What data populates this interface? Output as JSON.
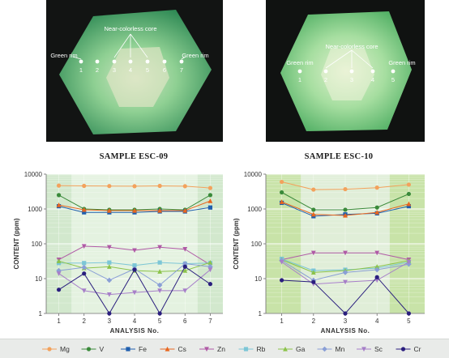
{
  "photos": [
    {
      "labels": {
        "core": "Near-colorless core",
        "rim_left": "Green rim",
        "rim_right": "Green rim"
      },
      "points": [
        "1",
        "2",
        "3",
        "4",
        "5",
        "6",
        "7"
      ]
    },
    {
      "labels": {
        "core": "Near-colorless core",
        "rim_left": "Green rim",
        "rim_right": "Green rim"
      },
      "points": [
        "1",
        "2",
        "3",
        "4",
        "5"
      ]
    }
  ],
  "titles": [
    "SAMPLE ESC-09",
    "SAMPLE ESC-10"
  ],
  "y_axis_label": "CONTENT (ppm)",
  "x_axis_label": "ANALYSIS No.",
  "colors": {
    "Mg": "#f3a25c",
    "V": "#3a8a3a",
    "Fe": "#1f5fae",
    "Cs": "#e8661e",
    "Zn": "#b05aa6",
    "Rb": "#7cc6d6",
    "Ga": "#8cc34a",
    "Mn": "#8a9fd6",
    "Sc": "#a77fc9",
    "Cr": "#2a1e7e",
    "rim_band": "#d2e8cd",
    "core_band": "#e4f2e0",
    "rim_band2": "#c8e3a8",
    "core_band2": "#e0eed8"
  },
  "chart_data": [
    {
      "type": "line",
      "title": "SAMPLE ESC-09",
      "xlabel": "ANALYSIS No.",
      "ylabel": "CONTENT (ppm)",
      "yscale": "log",
      "ylim": [
        1,
        10000
      ],
      "x": [
        1,
        2,
        3,
        4,
        5,
        6,
        7
      ],
      "y_ticks": [
        "1",
        "10",
        "100",
        "1000",
        "10000"
      ],
      "series": [
        {
          "name": "Mg",
          "values": [
            4700,
            4600,
            4550,
            4500,
            4600,
            4500,
            4000
          ]
        },
        {
          "name": "V",
          "values": [
            2500,
            1000,
            950,
            950,
            1000,
            950,
            2500
          ]
        },
        {
          "name": "Fe",
          "values": [
            1200,
            800,
            800,
            800,
            850,
            850,
            1100
          ]
        },
        {
          "name": "Cs",
          "values": [
            1300,
            950,
            900,
            900,
            900,
            900,
            1700
          ]
        },
        {
          "name": "Zn",
          "values": [
            35,
            85,
            80,
            65,
            80,
            70,
            25
          ]
        },
        {
          "name": "Rb",
          "values": [
            28,
            28,
            29,
            24,
            29,
            27,
            28
          ]
        },
        {
          "name": "Ga",
          "values": [
            32,
            20,
            22,
            17,
            16,
            17,
            29
          ]
        },
        {
          "name": "Mn",
          "values": [
            17,
            21,
            9,
            19,
            6.5,
            27,
            22
          ]
        },
        {
          "name": "Sc",
          "values": [
            14,
            4.5,
            3.5,
            4,
            4.5,
            4.5,
            18
          ]
        },
        {
          "name": "Cr",
          "values": [
            4.8,
            14,
            1,
            18,
            1,
            22,
            7
          ]
        }
      ]
    },
    {
      "type": "line",
      "title": "SAMPLE ESC-10",
      "xlabel": "ANALYSIS No.",
      "ylabel": "CONTENT (ppm)",
      "yscale": "log",
      "ylim": [
        1,
        10000
      ],
      "x": [
        1,
        2,
        3,
        4,
        5
      ],
      "y_ticks": [
        "1",
        "10",
        "100",
        "1000",
        "10000"
      ],
      "series": [
        {
          "name": "Mg",
          "values": [
            6000,
            3600,
            3700,
            4100,
            5000
          ]
        },
        {
          "name": "V",
          "values": [
            3000,
            950,
            950,
            1100,
            2700
          ]
        },
        {
          "name": "Fe",
          "values": [
            1500,
            620,
            700,
            750,
            1200
          ]
        },
        {
          "name": "Cs",
          "values": [
            1600,
            700,
            650,
            800,
            1400
          ]
        },
        {
          "name": "Zn",
          "values": [
            35,
            55,
            55,
            55,
            35
          ]
        },
        {
          "name": "Rb",
          "values": [
            37,
            17,
            18,
            20,
            30
          ]
        },
        {
          "name": "Ga",
          "values": [
            35,
            15,
            17,
            22,
            33
          ]
        },
        {
          "name": "Mn",
          "values": [
            33,
            9,
            15,
            18,
            26
          ]
        },
        {
          "name": "Sc",
          "values": [
            30,
            7,
            8,
            9,
            30
          ]
        },
        {
          "name": "Cr",
          "values": [
            9,
            8,
            1,
            11,
            1
          ]
        }
      ]
    }
  ],
  "legend": [
    "Mg",
    "V",
    "Fe",
    "Cs",
    "Zn",
    "Rb",
    "Ga",
    "Mn",
    "Sc",
    "Cr"
  ]
}
